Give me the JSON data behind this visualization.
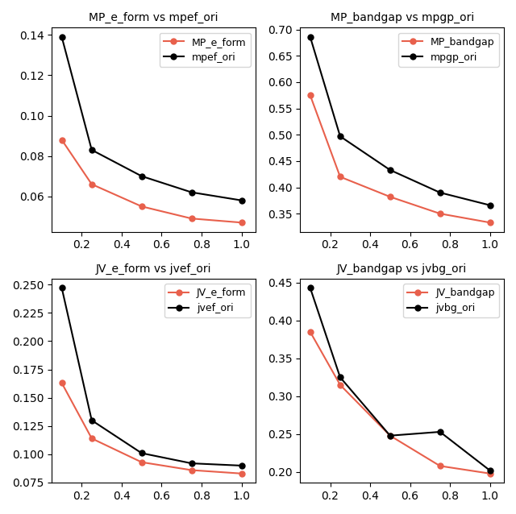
{
  "subplots": [
    {
      "title": "MP_e_form vs mpef_ori",
      "x": [
        0.1,
        0.25,
        0.5,
        0.75,
        1.0
      ],
      "line1": {
        "label": "MP_e_form",
        "y": [
          0.088,
          0.066,
          0.055,
          0.049,
          0.047
        ],
        "color": "#E8604C"
      },
      "line2": {
        "label": "mpef_ori",
        "y": [
          0.139,
          0.083,
          0.07,
          0.062,
          0.058
        ],
        "color": "#000000"
      }
    },
    {
      "title": "MP_bandgap vs mpgp_ori",
      "x": [
        0.1,
        0.25,
        0.5,
        0.75,
        1.0
      ],
      "line1": {
        "label": "MP_bandgap",
        "y": [
          0.575,
          0.42,
          0.382,
          0.35,
          0.333
        ],
        "color": "#E8604C"
      },
      "line2": {
        "label": "mpgp_ori",
        "y": [
          0.686,
          0.497,
          0.433,
          0.39,
          0.366
        ],
        "color": "#000000"
      }
    },
    {
      "title": "JV_e_form vs jvef_ori",
      "x": [
        0.1,
        0.25,
        0.5,
        0.75,
        1.0
      ],
      "line1": {
        "label": "JV_e_form",
        "y": [
          0.163,
          0.114,
          0.093,
          0.086,
          0.083
        ],
        "color": "#E8604C"
      },
      "line2": {
        "label": "jvef_ori",
        "y": [
          0.247,
          0.13,
          0.101,
          0.092,
          0.09
        ],
        "color": "#000000"
      }
    },
    {
      "title": "JV_bandgap vs jvbg_ori",
      "x": [
        0.1,
        0.25,
        0.5,
        0.75,
        1.0
      ],
      "line1": {
        "label": "JV_bandgap",
        "y": [
          0.385,
          0.315,
          0.248,
          0.208,
          0.198
        ],
        "color": "#E8604C"
      },
      "line2": {
        "label": "jvbg_ori",
        "y": [
          0.443,
          0.325,
          0.248,
          0.253,
          0.202
        ],
        "color": "#000000"
      }
    }
  ],
  "xticks": [
    0.2,
    0.4,
    0.6,
    0.8,
    1.0
  ],
  "xlim": [
    0.05,
    1.07
  ],
  "marker": "o",
  "linewidth": 1.5,
  "markersize": 5,
  "legend_fontsize": 9,
  "title_fontsize": 10
}
